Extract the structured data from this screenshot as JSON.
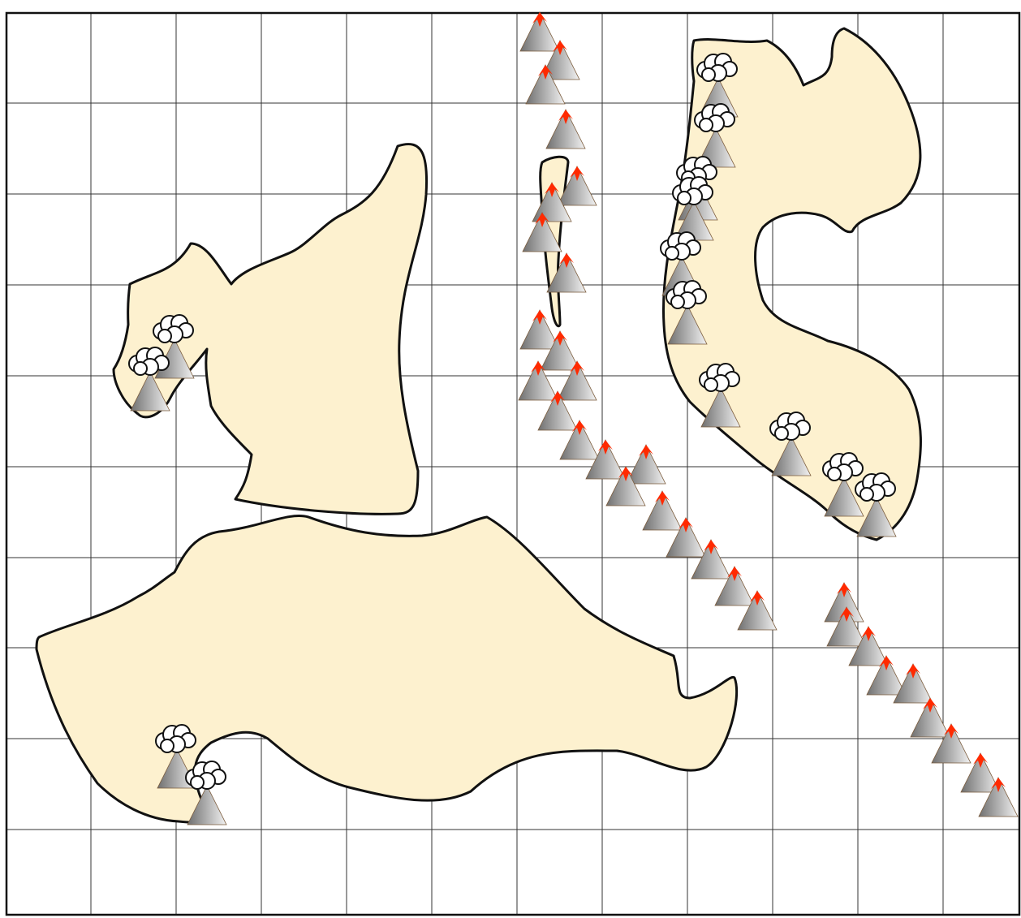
{
  "map": {
    "grid": {
      "columns": 12,
      "rows": 10,
      "visible": true
    },
    "colors": {
      "background": "#ffffff",
      "grid_line": "#333333",
      "land_fill": "#fdf1cf",
      "land_outline": "#111111",
      "volcano_dark": "#6f6f6f",
      "volcano_light": "#f2f2f2",
      "lava": "#ff2a00",
      "smoke": "#ffffff"
    },
    "features": {
      "islands": [
        "west-island",
        "south-island",
        "thin-sliver-island",
        "crescent-island"
      ],
      "volcano_icon": "volcano-icon",
      "smoke_icon": "smoke-cloud-icon",
      "undersea_chains": [
        "north-ridge-chain",
        "diagonal-ridge-chain",
        "southeast-ridge-chain"
      ]
    }
  }
}
